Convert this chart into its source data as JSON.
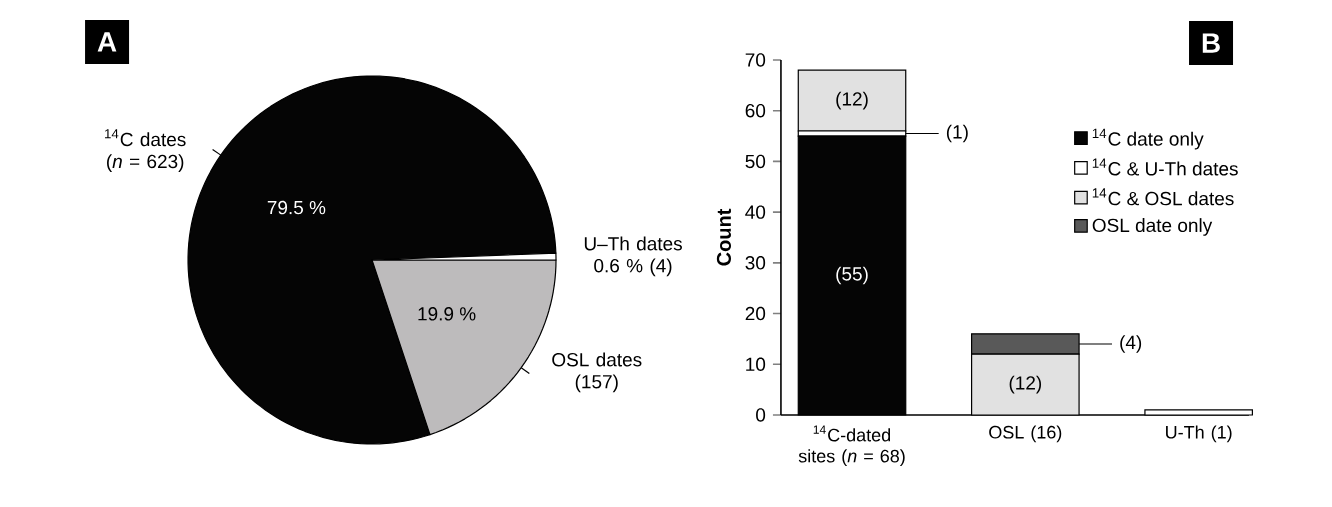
{
  "chart_data": [
    {
      "type": "pie",
      "title": "A",
      "categories": [
        "$^{14}$C dates (*n* = 623)",
        "OSL dates (157)",
        "U–Th dates"
      ],
      "values": [
        79.5,
        19.9,
        0.6
      ],
      "colors": [
        "#050505",
        "#bdbbbc",
        "#ffffff"
      ],
      "value_labels": [
        "79.5 %",
        "19.9 %",
        "0.6 % (4)"
      ]
    },
    {
      "type": "bar",
      "title": "B",
      "stacked": true,
      "ylabel": "Count",
      "categories": [
        "$^{14}$C-dated sites (*n* = 68)",
        "OSL (16)",
        "U-Th (1)"
      ],
      "series": [
        {
          "name": "$^{14}$C date only",
          "color": "#050505",
          "values": [
            55,
            null,
            null
          ],
          "value_labels": [
            "(55)",
            null,
            null
          ]
        },
        {
          "name": "$^{14}$C & U-Th dates",
          "color": "#ffffff",
          "values": [
            1,
            null,
            1
          ],
          "value_labels": [
            "(1)",
            null,
            null
          ]
        },
        {
          "name": "$^{14}$C & OSL dates",
          "color": "#e1e1e1",
          "values": [
            12,
            12,
            null
          ],
          "value_labels": [
            "(12)",
            "(12)",
            null
          ]
        },
        {
          "name": "OSL date only",
          "color": "#595959",
          "values": [
            null,
            4,
            null
          ],
          "value_labels": [
            null,
            "(4)",
            null
          ]
        }
      ],
      "ylim": [
        0,
        70
      ],
      "yticks": [
        0,
        10,
        20,
        30,
        40,
        50,
        60,
        70
      ],
      "legend": "top right"
    }
  ]
}
